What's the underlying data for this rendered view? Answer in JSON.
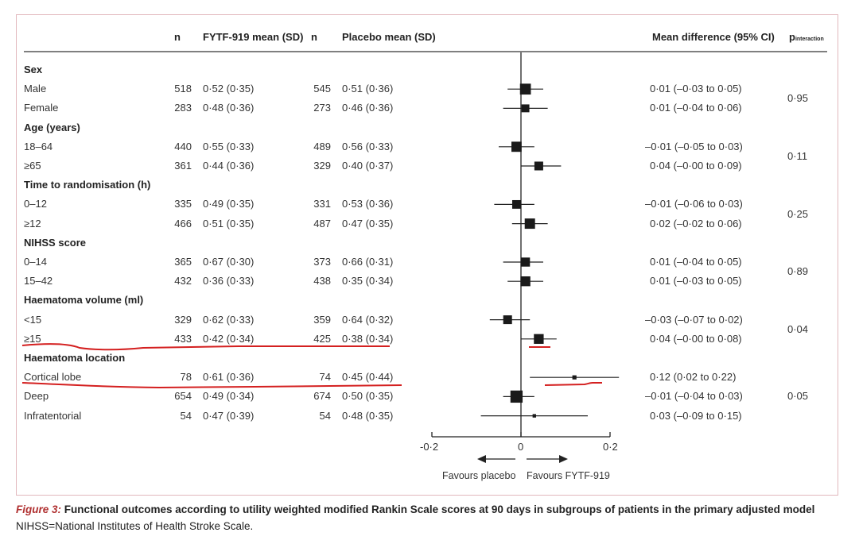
{
  "chart_data": {
    "type": "forest",
    "columns": {
      "n1": "n",
      "fytf": "FYTF-919 mean (SD)",
      "n2": "n",
      "placebo": "Placebo mean (SD)",
      "md": "Mean difference (95% CI)",
      "p_main": "p",
      "p_sub": "interaction"
    },
    "xlim": [
      -0.2,
      0.2
    ],
    "ticks": [
      "-0·2",
      "0",
      "0·2"
    ],
    "tick_values": [
      -0.2,
      0,
      0.2
    ],
    "favours_left": "Favours placebo",
    "favours_right": "Favours FYTF-919",
    "rows": [
      {
        "group": "Sex"
      },
      {
        "label": "Male",
        "n1": "518",
        "fytf": "0·52 (0·35)",
        "n2": "545",
        "placebo": "0·51 (0·36)",
        "md": "0·01 (–0·03 to 0·05)",
        "est": 0.01,
        "lo": -0.03,
        "hi": 0.05
      },
      {
        "label": "Female",
        "n1": "283",
        "fytf": "0·48 (0·36)",
        "n2": "273",
        "placebo": "0·46 (0·36)",
        "md": "0·01 (–0·04 to 0·06)",
        "est": 0.01,
        "lo": -0.04,
        "hi": 0.06
      },
      {
        "group": "Age (years)"
      },
      {
        "label": "18–64",
        "n1": "440",
        "fytf": "0·55 (0·33)",
        "n2": "489",
        "placebo": "0·56 (0·33)",
        "md": "–0·01 (–0·05 to 0·03)",
        "est": -0.01,
        "lo": -0.05,
        "hi": 0.03
      },
      {
        "label": "≥65",
        "n1": "361",
        "fytf": "0·44 (0·36)",
        "n2": "329",
        "placebo": "0·40 (0·37)",
        "md": "0·04 (–0·00 to 0·09)",
        "est": 0.04,
        "lo": 0.0,
        "hi": 0.09
      },
      {
        "group": "Time to randomisation (h)"
      },
      {
        "label": "0–12",
        "n1": "335",
        "fytf": "0·49 (0·35)",
        "n2": "331",
        "placebo": "0·53 (0·36)",
        "md": "–0·01 (–0·06 to 0·03)",
        "est": -0.01,
        "lo": -0.06,
        "hi": 0.03
      },
      {
        "label": "≥12",
        "n1": "466",
        "fytf": "0·51 (0·35)",
        "n2": "487",
        "placebo": "0·47 (0·35)",
        "md": "0·02 (–0·02 to 0·06)",
        "est": 0.02,
        "lo": -0.02,
        "hi": 0.06
      },
      {
        "group": "NIHSS score"
      },
      {
        "label": "0–14",
        "n1": "365",
        "fytf": "0·67 (0·30)",
        "n2": "373",
        "placebo": "0·66 (0·31)",
        "md": "0·01 (–0·04 to 0·05)",
        "est": 0.01,
        "lo": -0.04,
        "hi": 0.05
      },
      {
        "label": "15–42",
        "n1": "432",
        "fytf": "0·36 (0·33)",
        "n2": "438",
        "placebo": "0·35 (0·34)",
        "md": "0·01 (–0·03 to 0·05)",
        "est": 0.01,
        "lo": -0.03,
        "hi": 0.05
      },
      {
        "group": "Haematoma volume (ml)"
      },
      {
        "label": "<15",
        "n1": "329",
        "fytf": "0·62 (0·33)",
        "n2": "359",
        "placebo": "0·64 (0·32)",
        "md": "–0·03 (–0·07 to 0·02)",
        "est": -0.03,
        "lo": -0.07,
        "hi": 0.02
      },
      {
        "label": "≥15",
        "n1": "433",
        "fytf": "0·42 (0·34)",
        "n2": "425",
        "placebo": "0·38 (0·34)",
        "md": "0·04 (–0·00 to 0·08)",
        "est": 0.04,
        "lo": 0.0,
        "hi": 0.08
      },
      {
        "group": "Haematoma location"
      },
      {
        "label": "Cortical lobe",
        "n1": "78",
        "fytf": "0·61 (0·36)",
        "n2": "74",
        "placebo": "0·45 (0·44)",
        "md": "0·12 (0·02 to 0·22)",
        "est": 0.12,
        "lo": 0.02,
        "hi": 0.22
      },
      {
        "label": "Deep",
        "n1": "654",
        "fytf": "0·49 (0·34)",
        "n2": "674",
        "placebo": "0·50 (0·35)",
        "md": "–0·01 (–0·04 to 0·03)",
        "est": -0.01,
        "lo": -0.04,
        "hi": 0.03
      },
      {
        "label": "Infratentorial",
        "n1": "54",
        "fytf": "0·47 (0·39)",
        "n2": "54",
        "placebo": "0·48 (0·35)",
        "md": "0·03 (–0·09 to 0·15)",
        "est": 0.03,
        "lo": -0.09,
        "hi": 0.15
      }
    ],
    "p_interaction": [
      {
        "value": "0·95",
        "group": "Sex"
      },
      {
        "value": "0·11",
        "group": "Age (years)"
      },
      {
        "value": "0·25",
        "group": "Time to randomisation (h)"
      },
      {
        "value": "0·89",
        "group": "NIHSS score"
      },
      {
        "value": "0·04",
        "group": "Haematoma volume (ml)"
      },
      {
        "value": "0·05",
        "group": "Haematoma location"
      }
    ],
    "annotation_color": "#d42020"
  },
  "caption": {
    "figure_label": "Figure 3:",
    "title": " Functional outcomes according to utility weighted modified Rankin Scale scores at 90 days in subgroups of patients in the primary adjusted model",
    "note": "NIHSS=National Institutes of Health Stroke Scale."
  }
}
